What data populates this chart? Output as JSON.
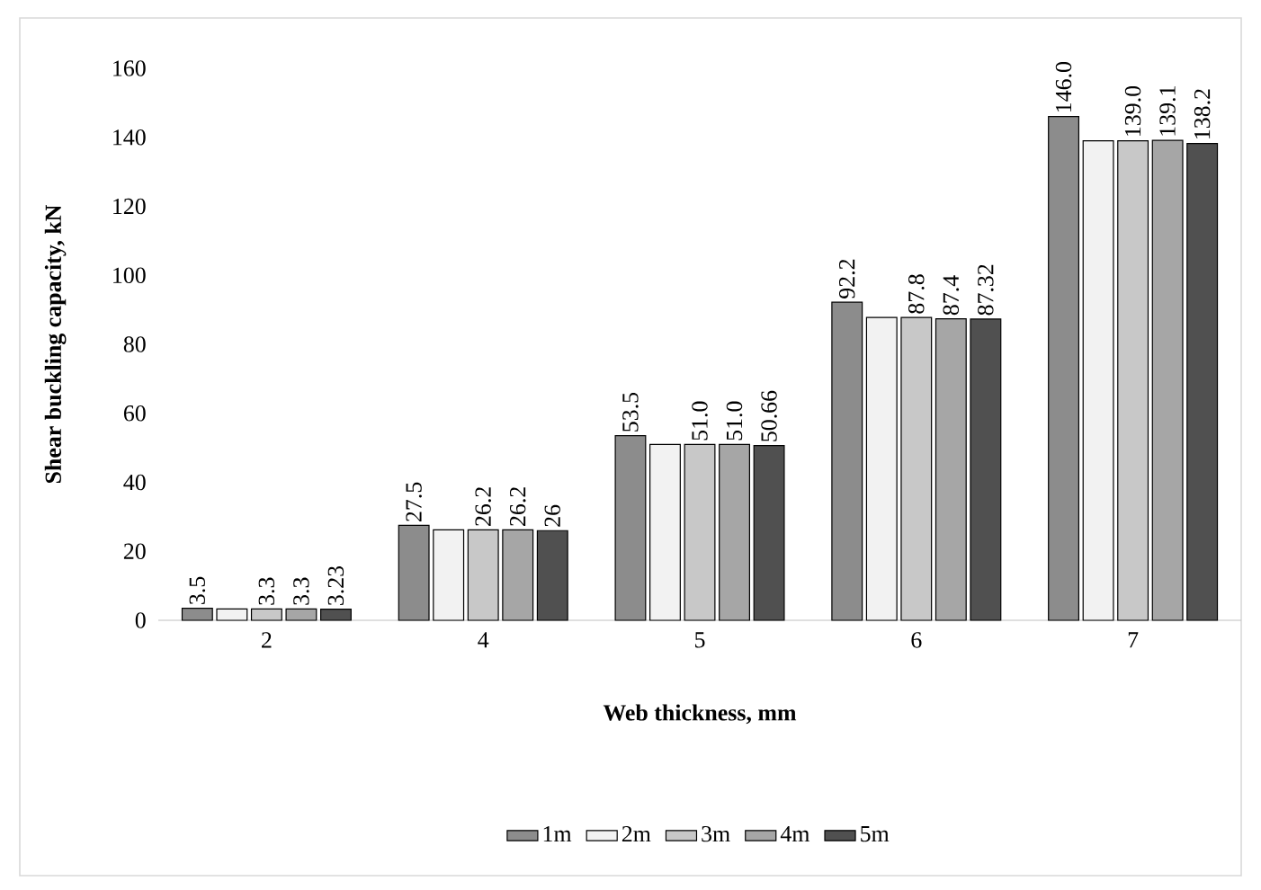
{
  "chart_data": {
    "type": "bar",
    "xlabel": "Web thickness, mm",
    "ylabel": "Shear buckling capacity, kN",
    "categories": [
      "2",
      "4",
      "5",
      "6",
      "7"
    ],
    "series": [
      {
        "name": "1m",
        "color": "#8c8c8c",
        "values": [
          3.5,
          27.5,
          53.5,
          92.2,
          146.0
        ],
        "value_labels": [
          "3.5",
          "27.5",
          "53.5",
          "92.2",
          "146.0"
        ]
      },
      {
        "name": "2m",
        "color": "#f2f2f2",
        "values": [
          3.3,
          26.2,
          51.0,
          87.8,
          139.0
        ],
        "value_labels": [
          null,
          null,
          null,
          null,
          null
        ]
      },
      {
        "name": "3m",
        "color": "#c8c8c8",
        "values": [
          3.3,
          26.2,
          51.0,
          87.8,
          139.0
        ],
        "value_labels": [
          "3.3",
          "26.2",
          "51.0",
          "87.8",
          "139.0"
        ]
      },
      {
        "name": "4m",
        "color": "#a6a6a6",
        "values": [
          3.3,
          26.2,
          51.0,
          87.4,
          139.1
        ],
        "value_labels": [
          "3.3",
          "26.2",
          "51.0",
          "87.4",
          "139.1"
        ]
      },
      {
        "name": "5m",
        "color": "#505050",
        "values": [
          3.23,
          26,
          50.66,
          87.32,
          138.2
        ],
        "value_labels": [
          "3.23",
          "26",
          "50.66",
          "87.32",
          "138.2"
        ]
      }
    ],
    "ylim": [
      0,
      160
    ],
    "yticks": [
      0,
      20,
      40,
      60,
      80,
      100,
      120,
      140,
      160
    ],
    "grid": false,
    "legend": "bottom"
  }
}
